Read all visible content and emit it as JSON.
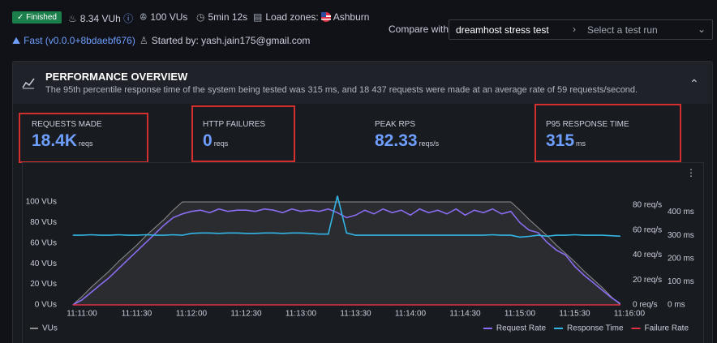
{
  "header": {
    "status": "Finished",
    "vuh": "8.34 VUh",
    "vus": "100 VUs",
    "duration": "5min 12s",
    "load_zones_label": "Load zones:",
    "load_zone": "Ashburn",
    "version": "Fast (v0.0.0+8bdaebf676)",
    "started_by": "Started by: yash.jain175@gmail.com",
    "compare_label": "Compare with",
    "compare_test": "dreamhost stress test",
    "compare_placeholder": "Select a test run"
  },
  "overview": {
    "title": "PERFORMANCE OVERVIEW",
    "description": "The 95th percentile response time of the system being tested was 315 ms, and 18 437 requests were made at an average rate of 59 requests/second.",
    "stats": [
      {
        "label": "REQUESTS MADE",
        "value": "18.4K",
        "unit": "reqs"
      },
      {
        "label": "HTTP FAILURES",
        "value": 0,
        "unit": "reqs"
      },
      {
        "label": "PEAK RPS",
        "value": 82.33,
        "unit": "reqs/s"
      },
      {
        "label": "P95 RESPONSE TIME",
        "value": 315,
        "unit": "ms"
      }
    ]
  },
  "chart_data": {
    "type": "line",
    "xlim": [
      "11:10:52",
      "11:16:00"
    ],
    "xticks": [
      "11:11:00",
      "11:11:30",
      "11:12:00",
      "11:12:30",
      "11:13:00",
      "11:13:30",
      "11:14:00",
      "11:14:30",
      "11:15:00",
      "11:15:30",
      "11:16:00"
    ],
    "ylim": [
      0,
      115
    ],
    "yticks": [
      {
        "value": 0,
        "label": "0 VUs"
      },
      {
        "value": 20,
        "label": "20 VUs"
      },
      {
        "value": 40,
        "label": "40 VUs"
      },
      {
        "value": 60,
        "label": "60 VUs"
      },
      {
        "value": 80,
        "label": "80 VUs"
      },
      {
        "value": 100,
        "label": "100 VUs"
      }
    ],
    "y2lim": [
      0,
      95
    ],
    "y2ticks": [
      {
        "value": 0,
        "label": "0 req/s"
      },
      {
        "value": 20,
        "label": "20 req/s"
      },
      {
        "value": 40,
        "label": "40 req/s"
      },
      {
        "value": 60,
        "label": "60 req/s"
      },
      {
        "value": 80,
        "label": "80 req/s"
      }
    ],
    "y3lim": [
      0,
      510
    ],
    "y3ticks": [
      {
        "value": 0,
        "label": "0 ms"
      },
      {
        "value": 100,
        "label": "100 ms"
      },
      {
        "value": 200,
        "label": "200 ms"
      },
      {
        "value": 300,
        "label": "300 ms"
      },
      {
        "value": 400,
        "label": "400 ms"
      }
    ],
    "grid": false,
    "legend": "bottom",
    "x": [
      "11:10:55",
      "11:11:00",
      "11:11:05",
      "11:11:10",
      "11:11:15",
      "11:11:20",
      "11:11:25",
      "11:11:30",
      "11:11:35",
      "11:11:40",
      "11:11:45",
      "11:11:50",
      "11:11:55",
      "11:12:00",
      "11:12:05",
      "11:12:10",
      "11:12:15",
      "11:12:20",
      "11:12:25",
      "11:12:30",
      "11:12:35",
      "11:12:40",
      "11:12:45",
      "11:12:50",
      "11:12:55",
      "11:13:00",
      "11:13:05",
      "11:13:10",
      "11:13:15",
      "11:13:20",
      "11:13:25",
      "11:13:30",
      "11:13:35",
      "11:13:40",
      "11:13:45",
      "11:13:50",
      "11:13:55",
      "11:14:00",
      "11:14:05",
      "11:14:10",
      "11:14:15",
      "11:14:20",
      "11:14:25",
      "11:14:30",
      "11:14:35",
      "11:14:40",
      "11:14:45",
      "11:14:50",
      "11:14:55",
      "11:15:00",
      "11:15:05",
      "11:15:10",
      "11:15:15",
      "11:15:20",
      "11:15:25",
      "11:15:30",
      "11:15:35",
      "11:15:40",
      "11:15:45",
      "11:15:50",
      "11:15:55"
    ],
    "series": [
      {
        "name": "VUs",
        "color": "#8e8e8e",
        "axis": "y",
        "area": true,
        "values": [
          0,
          8,
          17,
          25,
          33,
          42,
          50,
          58,
          67,
          75,
          83,
          92,
          100,
          100,
          100,
          100,
          100,
          100,
          100,
          100,
          100,
          100,
          100,
          100,
          100,
          100,
          100,
          100,
          100,
          100,
          100,
          100,
          100,
          100,
          100,
          100,
          100,
          100,
          100,
          100,
          100,
          100,
          100,
          100,
          100,
          100,
          100,
          100,
          100,
          92,
          83,
          75,
          67,
          58,
          50,
          42,
          33,
          25,
          17,
          8,
          0
        ]
      },
      {
        "name": "Request Rate",
        "color": "#8a6cf0",
        "axis": "y2",
        "values": [
          0,
          4,
          10,
          16,
          22,
          29,
          36,
          43,
          50,
          57,
          64,
          70,
          73,
          75,
          76,
          74,
          77,
          75,
          76,
          76,
          75,
          77,
          76,
          74,
          77,
          75,
          76,
          75,
          77,
          74,
          70,
          72,
          76,
          73,
          77,
          74,
          76,
          72,
          77,
          74,
          76,
          73,
          77,
          72,
          76,
          74,
          77,
          73,
          75,
          66,
          60,
          58,
          50,
          44,
          40,
          31,
          24,
          18,
          12,
          6,
          1
        ]
      },
      {
        "name": "Response Time",
        "color": "#33b5e5",
        "axis": "y3",
        "values": [
          300,
          300,
          302,
          300,
          300,
          302,
          300,
          300,
          302,
          300,
          300,
          302,
          300,
          308,
          310,
          310,
          308,
          310,
          310,
          308,
          308,
          310,
          310,
          308,
          310,
          310,
          308,
          305,
          305,
          470,
          310,
          300,
          300,
          300,
          300,
          300,
          300,
          300,
          300,
          300,
          300,
          300,
          300,
          300,
          300,
          300,
          302,
          300,
          300,
          292,
          295,
          300,
          296,
          300,
          300,
          302,
          300,
          300,
          300,
          298,
          296
        ]
      },
      {
        "name": "Failure Rate",
        "color": "#e02f44",
        "axis": "y2",
        "values": [
          0,
          0,
          0,
          0,
          0,
          0,
          0,
          0,
          0,
          0,
          0,
          0,
          0,
          0,
          0,
          0,
          0,
          0,
          0,
          0,
          0,
          0,
          0,
          0,
          0,
          0,
          0,
          0,
          0,
          0,
          0,
          0,
          0,
          0,
          0,
          0,
          0,
          0,
          0,
          0,
          0,
          0,
          0,
          0,
          0,
          0,
          0,
          0,
          0,
          0,
          0,
          0,
          0,
          0,
          0,
          0,
          0,
          0,
          0,
          0,
          0
        ]
      }
    ]
  }
}
